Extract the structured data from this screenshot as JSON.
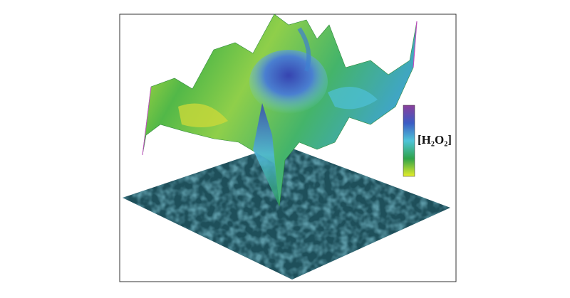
{
  "figure": {
    "colorbar_label": "[H₂O₂]"
  }
}
